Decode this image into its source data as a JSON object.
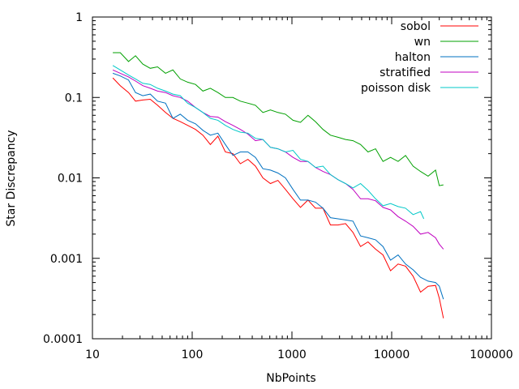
{
  "chart_data": {
    "type": "line",
    "title": "",
    "xlabel": "NbPoints",
    "ylabel": "Star Discrepancy",
    "xscale": "log",
    "yscale": "log",
    "xlim": [
      10,
      100000
    ],
    "ylim": [
      0.0001,
      1
    ],
    "x_ticks": [
      10,
      100,
      1000,
      10000,
      100000
    ],
    "x_tick_labels": [
      "10",
      "100",
      "1000",
      "10000",
      "100000"
    ],
    "y_ticks": [
      0.0001,
      0.001,
      0.01,
      0.1,
      1
    ],
    "y_tick_labels": [
      "0.0001",
      "0.001",
      "0.01",
      "0.1",
      "1"
    ],
    "grid": false,
    "legend": "top-right",
    "series": [
      {
        "name": "sobol",
        "color": "#ff0000",
        "points": [
          [
            16,
            0.175
          ],
          [
            19,
            0.14
          ],
          [
            23,
            0.115
          ],
          [
            27,
            0.09
          ],
          [
            32,
            0.093
          ],
          [
            38,
            0.095
          ],
          [
            45,
            0.08
          ],
          [
            54,
            0.065
          ],
          [
            64,
            0.055
          ],
          [
            76,
            0.05
          ],
          [
            90,
            0.045
          ],
          [
            108,
            0.04
          ],
          [
            128,
            0.034
          ],
          [
            152,
            0.026
          ],
          [
            181,
            0.033
          ],
          [
            215,
            0.021
          ],
          [
            256,
            0.02
          ],
          [
            304,
            0.015
          ],
          [
            362,
            0.017
          ],
          [
            431,
            0.014
          ],
          [
            512,
            0.01
          ],
          [
            609,
            0.0085
          ],
          [
            724,
            0.0093
          ],
          [
            861,
            0.0072
          ],
          [
            1024,
            0.0055
          ],
          [
            1218,
            0.0043
          ],
          [
            1448,
            0.0053
          ],
          [
            1722,
            0.0042
          ],
          [
            2048,
            0.0042
          ],
          [
            2435,
            0.0026
          ],
          [
            2896,
            0.0026
          ],
          [
            3444,
            0.0027
          ],
          [
            4096,
            0.0021
          ],
          [
            4871,
            0.0014
          ],
          [
            5793,
            0.0016
          ],
          [
            6889,
            0.0013
          ],
          [
            8192,
            0.0011
          ],
          [
            9742,
            0.0007
          ],
          [
            11585,
            0.00085
          ],
          [
            13777,
            0.0008
          ],
          [
            16384,
            0.0006
          ],
          [
            19484,
            0.00038
          ],
          [
            23170,
            0.00045
          ],
          [
            27554,
            0.00046
          ],
          [
            30000,
            0.00032
          ],
          [
            33000,
            0.00018
          ]
        ]
      },
      {
        "name": "wn",
        "color": "#00a000",
        "points": [
          [
            16,
            0.36
          ],
          [
            19,
            0.36
          ],
          [
            23,
            0.28
          ],
          [
            27,
            0.33
          ],
          [
            32,
            0.26
          ],
          [
            38,
            0.23
          ],
          [
            45,
            0.24
          ],
          [
            54,
            0.2
          ],
          [
            64,
            0.22
          ],
          [
            76,
            0.17
          ],
          [
            90,
            0.155
          ],
          [
            108,
            0.145
          ],
          [
            128,
            0.12
          ],
          [
            152,
            0.13
          ],
          [
            181,
            0.115
          ],
          [
            215,
            0.1
          ],
          [
            256,
            0.1
          ],
          [
            304,
            0.09
          ],
          [
            362,
            0.085
          ],
          [
            431,
            0.08
          ],
          [
            512,
            0.065
          ],
          [
            609,
            0.07
          ],
          [
            724,
            0.065
          ],
          [
            861,
            0.062
          ],
          [
            1024,
            0.052
          ],
          [
            1218,
            0.049
          ],
          [
            1448,
            0.06
          ],
          [
            1722,
            0.05
          ],
          [
            2048,
            0.04
          ],
          [
            2435,
            0.034
          ],
          [
            2896,
            0.032
          ],
          [
            3444,
            0.03
          ],
          [
            4096,
            0.029
          ],
          [
            4871,
            0.026
          ],
          [
            5793,
            0.021
          ],
          [
            6889,
            0.023
          ],
          [
            8192,
            0.016
          ],
          [
            9742,
            0.018
          ],
          [
            11585,
            0.016
          ],
          [
            13777,
            0.019
          ],
          [
            16384,
            0.014
          ],
          [
            19484,
            0.012
          ],
          [
            23170,
            0.0105
          ],
          [
            27554,
            0.0125
          ],
          [
            30000,
            0.008
          ],
          [
            33000,
            0.0082
          ]
        ]
      },
      {
        "name": "halton",
        "color": "#0070c0",
        "points": [
          [
            16,
            0.2
          ],
          [
            19,
            0.185
          ],
          [
            23,
            0.165
          ],
          [
            27,
            0.115
          ],
          [
            32,
            0.105
          ],
          [
            38,
            0.11
          ],
          [
            45,
            0.09
          ],
          [
            54,
            0.085
          ],
          [
            64,
            0.055
          ],
          [
            76,
            0.062
          ],
          [
            90,
            0.052
          ],
          [
            108,
            0.047
          ],
          [
            128,
            0.039
          ],
          [
            152,
            0.034
          ],
          [
            181,
            0.036
          ],
          [
            215,
            0.026
          ],
          [
            256,
            0.019
          ],
          [
            304,
            0.021
          ],
          [
            362,
            0.021
          ],
          [
            431,
            0.018
          ],
          [
            512,
            0.013
          ],
          [
            609,
            0.0125
          ],
          [
            724,
            0.0115
          ],
          [
            861,
            0.01
          ],
          [
            1024,
            0.0072
          ],
          [
            1218,
            0.0053
          ],
          [
            1448,
            0.0053
          ],
          [
            1722,
            0.005
          ],
          [
            2048,
            0.0042
          ],
          [
            2435,
            0.0032
          ],
          [
            2896,
            0.0031
          ],
          [
            3444,
            0.003
          ],
          [
            4096,
            0.0029
          ],
          [
            4871,
            0.0019
          ],
          [
            5793,
            0.0018
          ],
          [
            6889,
            0.0017
          ],
          [
            8192,
            0.0014
          ],
          [
            9742,
            0.00095
          ],
          [
            11585,
            0.0011
          ],
          [
            13777,
            0.00085
          ],
          [
            16384,
            0.00072
          ],
          [
            19484,
            0.00058
          ],
          [
            23170,
            0.00052
          ],
          [
            27554,
            0.0005
          ],
          [
            30000,
            0.00045
          ],
          [
            33000,
            0.00031
          ]
        ]
      },
      {
        "name": "stratified",
        "color": "#c000c0",
        "points": [
          [
            16,
            0.22
          ],
          [
            19,
            0.2
          ],
          [
            23,
            0.18
          ],
          [
            27,
            0.16
          ],
          [
            32,
            0.14
          ],
          [
            38,
            0.13
          ],
          [
            45,
            0.12
          ],
          [
            54,
            0.115
          ],
          [
            64,
            0.105
          ],
          [
            76,
            0.1
          ],
          [
            90,
            0.09
          ],
          [
            108,
            0.075
          ],
          [
            128,
            0.065
          ],
          [
            152,
            0.058
          ],
          [
            181,
            0.057
          ],
          [
            215,
            0.05
          ],
          [
            256,
            0.045
          ],
          [
            304,
            0.04
          ],
          [
            362,
            0.035
          ],
          [
            431,
            0.029
          ],
          [
            512,
            0.03
          ],
          [
            609,
            0.024
          ],
          [
            724,
            0.023
          ],
          [
            861,
            0.021
          ],
          [
            1024,
            0.018
          ],
          [
            1218,
            0.016
          ],
          [
            1448,
            0.016
          ],
          [
            1722,
            0.0135
          ],
          [
            2048,
            0.012
          ],
          [
            2435,
            0.011
          ],
          [
            2896,
            0.0095
          ],
          [
            3444,
            0.0085
          ],
          [
            4096,
            0.0072
          ],
          [
            4871,
            0.0055
          ],
          [
            5793,
            0.0055
          ],
          [
            6889,
            0.0052
          ],
          [
            8192,
            0.0043
          ],
          [
            9742,
            0.004
          ],
          [
            11585,
            0.0033
          ],
          [
            13777,
            0.0029
          ],
          [
            16384,
            0.0025
          ],
          [
            19484,
            0.002
          ],
          [
            23170,
            0.0021
          ],
          [
            27554,
            0.0018
          ],
          [
            30000,
            0.0015
          ],
          [
            33000,
            0.0013
          ]
        ]
      },
      {
        "name": "poisson disk",
        "color": "#00c8c8",
        "points": [
          [
            16,
            0.25
          ],
          [
            19,
            0.22
          ],
          [
            23,
            0.19
          ],
          [
            27,
            0.17
          ],
          [
            32,
            0.15
          ],
          [
            38,
            0.145
          ],
          [
            45,
            0.13
          ],
          [
            54,
            0.12
          ],
          [
            64,
            0.11
          ],
          [
            76,
            0.105
          ],
          [
            90,
            0.085
          ],
          [
            108,
            0.075
          ],
          [
            128,
            0.065
          ],
          [
            152,
            0.055
          ],
          [
            181,
            0.052
          ],
          [
            215,
            0.045
          ],
          [
            256,
            0.04
          ],
          [
            304,
            0.037
          ],
          [
            362,
            0.036
          ],
          [
            431,
            0.031
          ],
          [
            512,
            0.03
          ],
          [
            609,
            0.024
          ],
          [
            724,
            0.023
          ],
          [
            861,
            0.021
          ],
          [
            1024,
            0.022
          ],
          [
            1218,
            0.017
          ],
          [
            1448,
            0.016
          ],
          [
            1722,
            0.0135
          ],
          [
            2048,
            0.014
          ],
          [
            2435,
            0.011
          ],
          [
            2896,
            0.0095
          ],
          [
            3444,
            0.0085
          ],
          [
            4096,
            0.0075
          ],
          [
            4871,
            0.0085
          ],
          [
            5793,
            0.007
          ],
          [
            6889,
            0.0055
          ],
          [
            8192,
            0.0045
          ],
          [
            9742,
            0.0048
          ],
          [
            11585,
            0.0044
          ],
          [
            13777,
            0.0042
          ],
          [
            16384,
            0.0035
          ],
          [
            19484,
            0.0038
          ],
          [
            21000,
            0.0031
          ]
        ]
      }
    ]
  }
}
